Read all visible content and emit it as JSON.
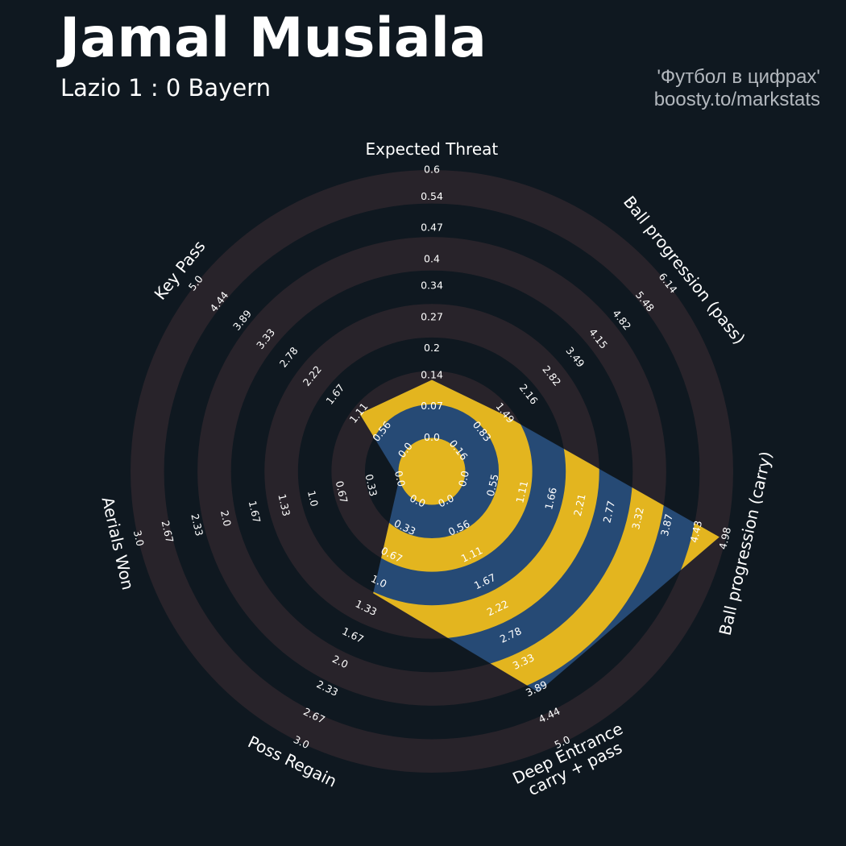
{
  "chart_data": {
    "type": "radar",
    "title": "Jamal Musiala",
    "subtitle": "Lazio 1 : 0 Bayern",
    "credits": [
      "'Футбол в цифрах'",
      "boosty.to/markstats"
    ],
    "background_color": "#0f1820",
    "ring_color": "#28232a",
    "fill_color": "#264a75",
    "ring_highlight_color": "#e3b51f",
    "params": [
      "Expected Threat",
      "Ball progression (pass)",
      "Ball progression (carry)",
      "Deep Entrance\ncarry + pass",
      "Poss Regain",
      "Aerials Won",
      "Key Pass"
    ],
    "values": [
      0.13,
      1.45,
      4.86,
      3.95,
      1.14,
      0,
      1.1
    ],
    "axes": [
      {
        "lim": [
          0,
          0.6
        ],
        "ticks": [
          {
            "value": 0,
            "label": "0.0"
          },
          0.07,
          0.14,
          0.2,
          0.27,
          0.34,
          0.4,
          0.47,
          0.54,
          0.6
        ]
      },
      {
        "lim": [
          0.16,
          6.14
        ],
        "ticks": [
          0.16,
          0.83,
          1.49,
          2.16,
          2.82,
          3.49,
          4.15,
          4.82,
          5.48,
          6.14
        ]
      },
      {
        "lim": [
          0,
          4.98
        ],
        "ticks": [
          {
            "value": 0,
            "label": "0.0"
          },
          0.55,
          1.11,
          1.66,
          2.21,
          2.77,
          3.32,
          3.87,
          4.43,
          4.98
        ]
      },
      {
        "lim": [
          0,
          5
        ],
        "ticks": [
          {
            "value": 0,
            "label": "0.0"
          },
          0.56,
          1.11,
          1.67,
          2.22,
          2.78,
          3.33,
          3.89,
          4.44,
          {
            "value": 5,
            "label": "5.0"
          }
        ]
      },
      {
        "lim": [
          0,
          3
        ],
        "ticks": [
          {
            "value": 0,
            "label": "0.0"
          },
          0.33,
          0.67,
          {
            "value": 1,
            "label": "1.0"
          },
          1.33,
          1.67,
          {
            "value": 2,
            "label": "2.0"
          },
          2.33,
          2.67,
          {
            "value": 3,
            "label": "3.0"
          }
        ]
      },
      {
        "lim": [
          0,
          3
        ],
        "ticks": [
          {
            "value": 0,
            "label": "0.0"
          },
          0.33,
          0.67,
          {
            "value": 1,
            "label": "1.0"
          },
          1.33,
          1.67,
          {
            "value": 2,
            "label": "2.0"
          },
          2.33,
          2.67,
          {
            "value": 3,
            "label": "3.0"
          }
        ]
      },
      {
        "lim": [
          0,
          5
        ],
        "ticks": [
          {
            "value": 0,
            "label": "0.0"
          },
          0.56,
          1.11,
          1.67,
          2.22,
          2.78,
          3.33,
          3.89,
          4.44,
          {
            "value": 5,
            "label": "5.0"
          }
        ]
      }
    ]
  }
}
